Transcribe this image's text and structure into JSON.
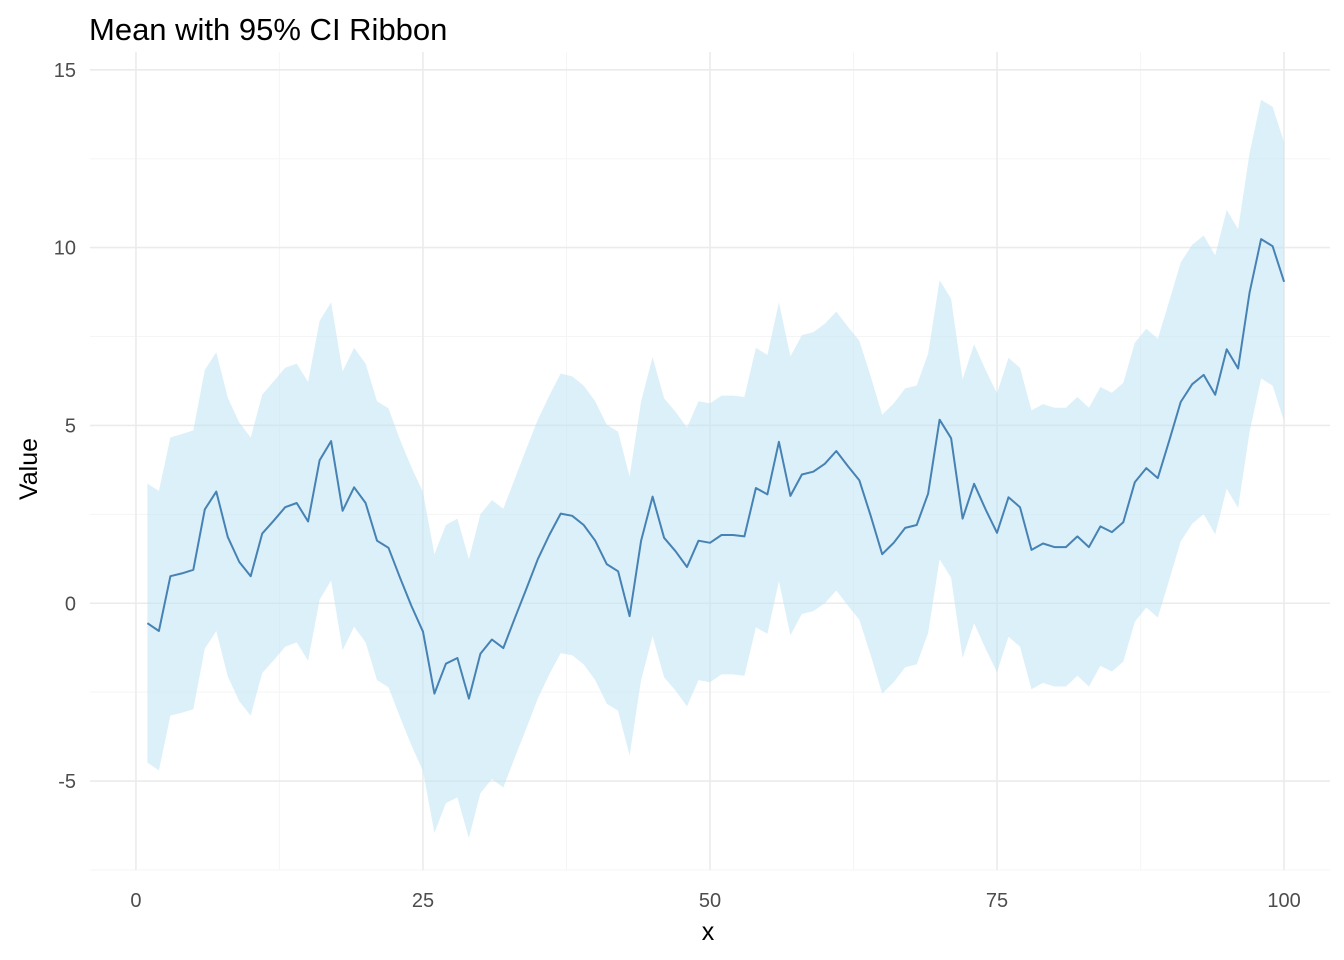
{
  "chart_data": {
    "type": "line",
    "title": "Mean with 95% CI Ribbon",
    "xlabel": "x",
    "ylabel": "Value",
    "xlim": [
      -4,
      104
    ],
    "ylim": [
      -7.5,
      15.5
    ],
    "x_ticks": [
      0,
      25,
      50,
      75,
      100
    ],
    "x_tick_labels": [
      "0",
      "25",
      "50",
      "75",
      "100"
    ],
    "y_ticks": [
      -5,
      0,
      5,
      10,
      15
    ],
    "y_tick_labels": [
      "-5",
      "0",
      "5",
      "10",
      "15"
    ],
    "grid": true,
    "legend": "none",
    "colors": {
      "line": "#4682b4",
      "ribbon": "#bfe4f4",
      "grid_major": "#ebebeb",
      "grid_minor": "#f5f5f5"
    },
    "series": [
      {
        "x": [
          1,
          2,
          3,
          4,
          5,
          6,
          7,
          8,
          9,
          10,
          11,
          12,
          13,
          14,
          15,
          16,
          17,
          18,
          19,
          20,
          21,
          22,
          23,
          24,
          25,
          26,
          27,
          28,
          29,
          30,
          31,
          32,
          33,
          34,
          35,
          36,
          37,
          38,
          39,
          40,
          41,
          42,
          43,
          44,
          45,
          46,
          47,
          48,
          49,
          50,
          51,
          52,
          53,
          54,
          55,
          56,
          57,
          58,
          59,
          60,
          61,
          62,
          63,
          64,
          65,
          66,
          67,
          68,
          69,
          70,
          71,
          72,
          73,
          74,
          75,
          76,
          77,
          78,
          79,
          80,
          81,
          82,
          83,
          84,
          85,
          86,
          87,
          88,
          89,
          90,
          91,
          92,
          93,
          94,
          95,
          96,
          97,
          98,
          99,
          100
        ],
        "mean": [
          -0.56,
          -0.78,
          0.76,
          0.84,
          0.94,
          2.64,
          3.14,
          1.86,
          1.16,
          0.76,
          1.96,
          2.32,
          2.7,
          2.82,
          2.3,
          4.02,
          4.56,
          2.6,
          3.26,
          2.82,
          1.76,
          1.56,
          0.72,
          -0.08,
          -0.8,
          -2.54,
          -1.7,
          -1.54,
          -2.68,
          -1.42,
          -1.02,
          -1.26,
          -0.42,
          0.4,
          1.24,
          1.92,
          2.52,
          2.46,
          2.2,
          1.76,
          1.1,
          0.9,
          -0.36,
          1.76,
          3,
          1.84,
          1.46,
          1.02,
          1.76,
          1.7,
          1.92,
          1.92,
          1.88,
          3.24,
          3.06,
          4.54,
          3.02,
          3.62,
          3.7,
          3.92,
          4.28,
          3.86,
          3.46,
          2.46,
          1.38,
          1.7,
          2.12,
          2.2,
          3.08,
          5.16,
          4.64,
          2.38,
          3.36,
          2.64,
          1.98,
          2.98,
          2.7,
          1.5,
          1.68,
          1.58,
          1.58,
          1.88,
          1.58,
          2.16,
          2,
          2.28,
          3.4,
          3.8,
          3.52,
          4.58,
          5.66,
          6.16,
          6.42,
          5.86,
          7.14,
          6.6,
          8.74,
          10.24,
          10.04,
          9.04
        ],
        "upper": [
          3.36,
          3.16,
          4.66,
          4.76,
          4.86,
          6.56,
          7.06,
          5.78,
          5.08,
          4.66,
          5.86,
          6.24,
          6.62,
          6.74,
          6.22,
          7.94,
          8.46,
          6.52,
          7.18,
          6.74,
          5.68,
          5.48,
          4.6,
          3.82,
          3.12,
          1.38,
          2.2,
          2.38,
          1.24,
          2.5,
          2.9,
          2.66,
          3.5,
          4.34,
          5.16,
          5.84,
          6.46,
          6.38,
          6.12,
          5.68,
          5.02,
          4.82,
          3.56,
          5.68,
          6.92,
          5.76,
          5.38,
          4.94,
          5.68,
          5.62,
          5.84,
          5.84,
          5.8,
          7.18,
          6.98,
          8.46,
          6.94,
          7.54,
          7.62,
          7.86,
          8.2,
          7.78,
          7.38,
          6.38,
          5.3,
          5.62,
          6.04,
          6.12,
          7.02,
          9.08,
          8.56,
          6.3,
          7.28,
          6.56,
          5.9,
          6.9,
          6.62,
          5.42,
          5.6,
          5.5,
          5.5,
          5.8,
          5.5,
          6.08,
          5.92,
          6.2,
          7.32,
          7.72,
          7.44,
          8.5,
          9.58,
          10.08,
          10.34,
          9.78,
          11.06,
          10.52,
          12.66,
          14.16,
          13.96,
          12.96
        ],
        "lower": [
          -4.48,
          -4.7,
          -3.16,
          -3.08,
          -2.98,
          -1.28,
          -0.78,
          -2.06,
          -2.76,
          -3.16,
          -1.96,
          -1.6,
          -1.22,
          -1.1,
          -1.62,
          0.1,
          0.64,
          -1.32,
          -0.66,
          -1.1,
          -2.16,
          -2.36,
          -3.2,
          -4,
          -4.72,
          -6.46,
          -5.62,
          -5.46,
          -6.6,
          -5.34,
          -4.94,
          -5.18,
          -4.34,
          -3.52,
          -2.68,
          -2,
          -1.4,
          -1.46,
          -1.72,
          -2.16,
          -2.82,
          -3.02,
          -4.28,
          -2.16,
          -0.92,
          -2.08,
          -2.46,
          -2.9,
          -2.16,
          -2.22,
          -2,
          -2,
          -2.04,
          -0.68,
          -0.86,
          0.62,
          -0.9,
          -0.3,
          -0.22,
          0,
          0.36,
          -0.06,
          -0.46,
          -1.46,
          -2.54,
          -2.22,
          -1.8,
          -1.72,
          -0.84,
          1.24,
          0.72,
          -1.54,
          -0.56,
          -1.28,
          -1.94,
          -0.94,
          -1.22,
          -2.42,
          -2.24,
          -2.34,
          -2.34,
          -2.04,
          -2.34,
          -1.76,
          -1.92,
          -1.64,
          -0.52,
          -0.12,
          -0.4,
          0.66,
          1.74,
          2.24,
          2.5,
          1.94,
          3.22,
          2.68,
          4.82,
          6.32,
          6.12,
          5.12
        ]
      }
    ]
  }
}
